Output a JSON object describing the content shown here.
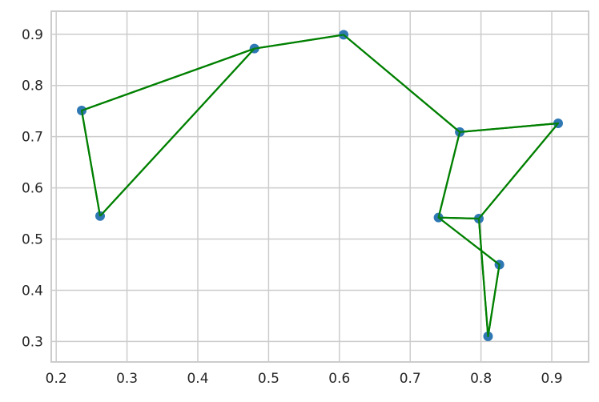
{
  "chart_data": {
    "type": "scatter",
    "title": "",
    "xlabel": "",
    "ylabel": "",
    "xlim": [
      0.193,
      0.952
    ],
    "ylim": [
      0.26,
      0.945
    ],
    "x_ticks": [
      "0.2",
      "0.3",
      "0.4",
      "0.5",
      "0.6",
      "0.7",
      "0.8",
      "0.9"
    ],
    "y_ticks": [
      "0.3",
      "0.4",
      "0.5",
      "0.6",
      "0.7",
      "0.8",
      "0.9"
    ],
    "grid": true,
    "legend": "none",
    "colors": {
      "point": "#2f78b4",
      "line": "#008000",
      "grid": "#cccccc",
      "text": "#262626"
    },
    "points": [
      {
        "x": 0.236,
        "y": 0.751
      },
      {
        "x": 0.262,
        "y": 0.545
      },
      {
        "x": 0.48,
        "y": 0.872
      },
      {
        "x": 0.606,
        "y": 0.899
      },
      {
        "x": 0.77,
        "y": 0.709
      },
      {
        "x": 0.909,
        "y": 0.726
      },
      {
        "x": 0.74,
        "y": 0.542
      },
      {
        "x": 0.797,
        "y": 0.54
      },
      {
        "x": 0.826,
        "y": 0.45
      },
      {
        "x": 0.81,
        "y": 0.31
      }
    ],
    "path": [
      {
        "x": 0.262,
        "y": 0.545
      },
      {
        "x": 0.236,
        "y": 0.751
      },
      {
        "x": 0.48,
        "y": 0.872
      },
      {
        "x": 0.606,
        "y": 0.899
      },
      {
        "x": 0.77,
        "y": 0.709
      },
      {
        "x": 0.909,
        "y": 0.726
      },
      {
        "x": 0.797,
        "y": 0.54
      },
      {
        "x": 0.81,
        "y": 0.31
      },
      {
        "x": 0.826,
        "y": 0.45
      },
      {
        "x": 0.74,
        "y": 0.542
      },
      {
        "x": 0.77,
        "y": 0.709
      }
    ],
    "extra_segments": [
      {
        "from": {
          "x": 0.74,
          "y": 0.542
        },
        "to": {
          "x": 0.797,
          "y": 0.54
        }
      },
      {
        "from": {
          "x": 0.48,
          "y": 0.872
        },
        "to": {
          "x": 0.262,
          "y": 0.545
        }
      }
    ]
  }
}
